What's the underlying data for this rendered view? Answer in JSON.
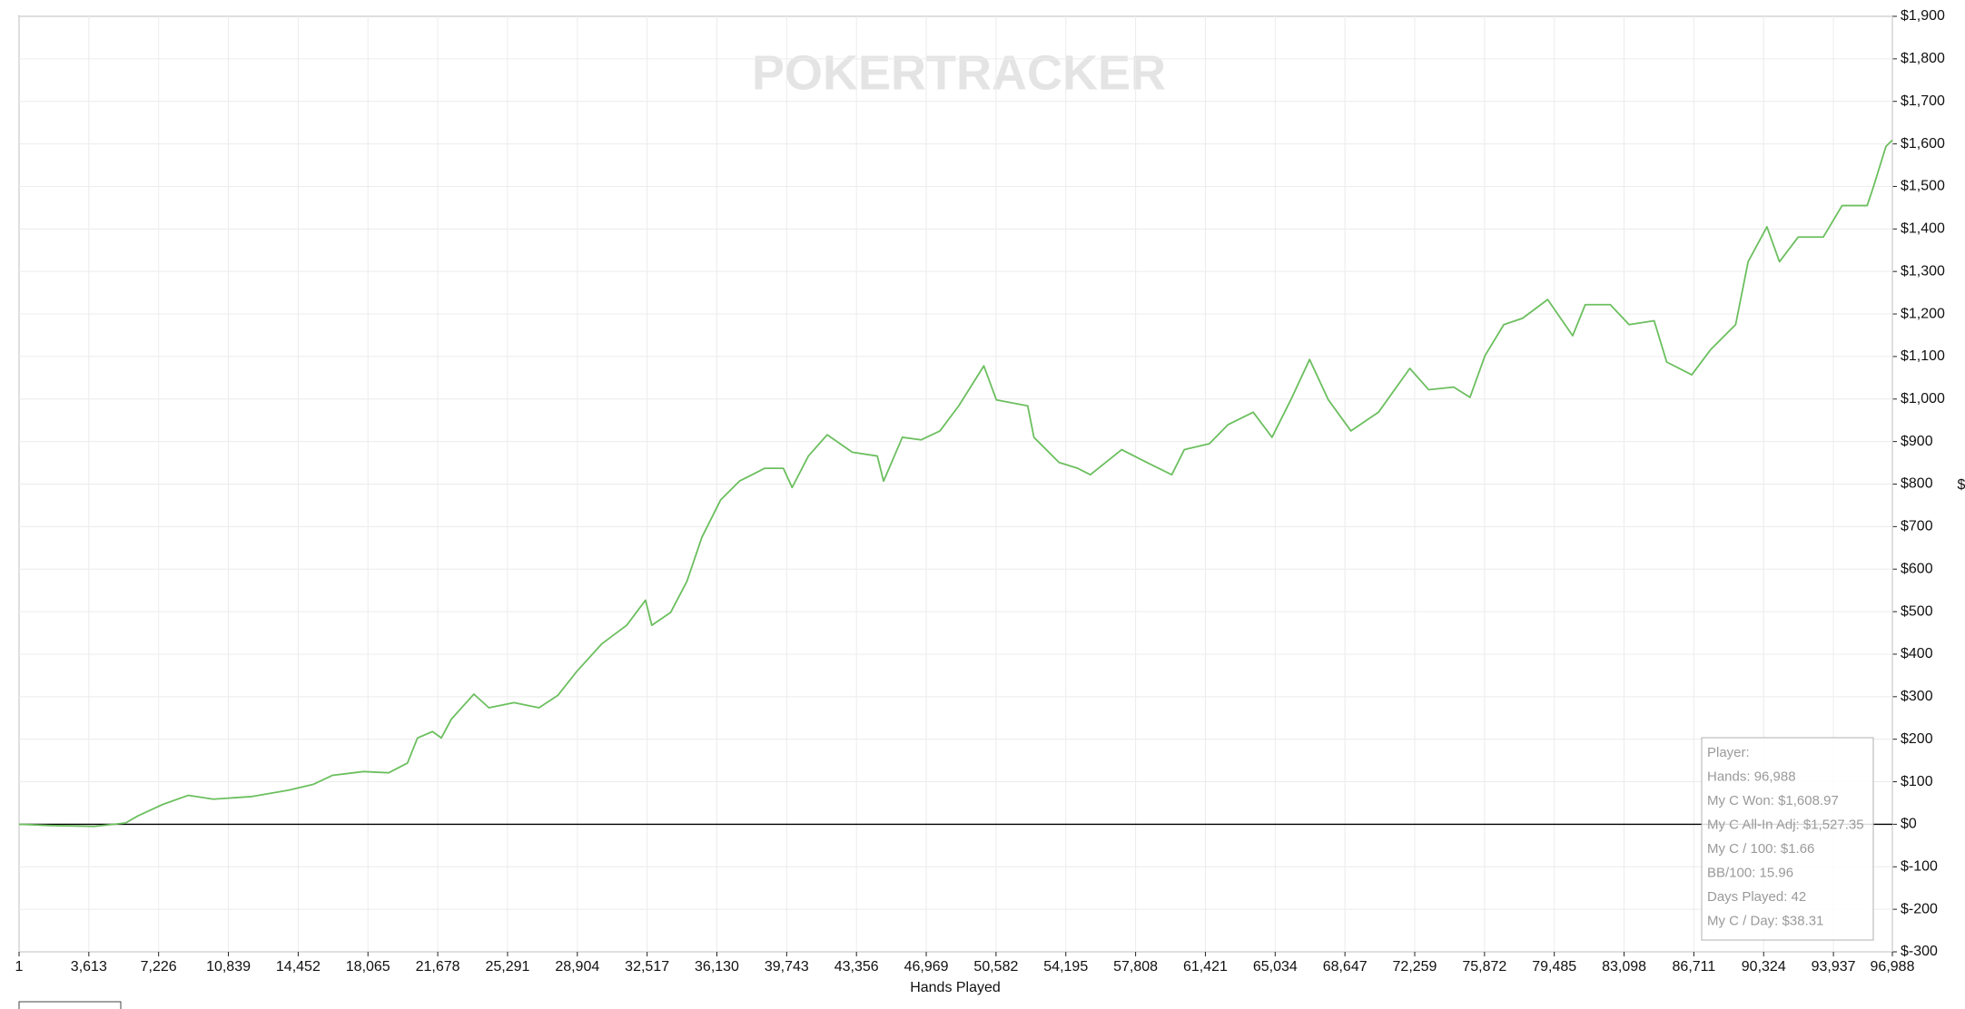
{
  "chart_data": {
    "type": "line",
    "watermark": "POKERTRACKER",
    "x_label": "Hands Played",
    "y_label": "$",
    "color": "#6cbf5f",
    "grid": true,
    "zero_line": true,
    "xlim": [
      1,
      96988
    ],
    "ylim": [
      -300,
      1900
    ],
    "xticks": [
      1,
      {
        "value": 3613,
        "label": "3,613"
      },
      {
        "value": 7226,
        "label": "7,226"
      },
      {
        "value": 10839,
        "label": "10,839"
      },
      {
        "value": 14452,
        "label": "14,452"
      },
      {
        "value": 18065,
        "label": "18,065"
      },
      {
        "value": 21678,
        "label": "21,678"
      },
      {
        "value": 25291,
        "label": "25,291"
      },
      {
        "value": 28904,
        "label": "28,904"
      },
      {
        "value": 32517,
        "label": "32,517"
      },
      {
        "value": 36130,
        "label": "36,130"
      },
      {
        "value": 39743,
        "label": "39,743"
      },
      {
        "value": 43356,
        "label": "43,356"
      },
      {
        "value": 46969,
        "label": "46,969"
      },
      {
        "value": 50582,
        "label": "50,582"
      },
      {
        "value": 54195,
        "label": "54,195"
      },
      {
        "value": 57808,
        "label": "57,808"
      },
      {
        "value": 61421,
        "label": "61,421"
      },
      {
        "value": 65034,
        "label": "65,034"
      },
      {
        "value": 68647,
        "label": "68,647"
      },
      {
        "value": 72259,
        "label": "72,259"
      },
      {
        "value": 75872,
        "label": "75,872"
      },
      {
        "value": 79485,
        "label": "79,485"
      },
      {
        "value": 83098,
        "label": "83,098"
      },
      {
        "value": 86711,
        "label": "86,711"
      },
      {
        "value": 90324,
        "label": "90,324"
      },
      {
        "value": 93937,
        "label": "93,937"
      },
      {
        "value": 96988,
        "label": "96,988"
      }
    ],
    "yticks": [
      {
        "value": -300,
        "label": "$-300"
      },
      {
        "value": -200,
        "label": "$-200"
      },
      {
        "value": -100,
        "label": "$-100"
      },
      {
        "value": 0,
        "label": "$0"
      },
      {
        "value": 100,
        "label": "$100"
      },
      {
        "value": 200,
        "label": "$200"
      },
      {
        "value": 300,
        "label": "$300"
      },
      {
        "value": 400,
        "label": "$400"
      },
      {
        "value": 500,
        "label": "$500"
      },
      {
        "value": 600,
        "label": "$600"
      },
      {
        "value": 700,
        "label": "$700"
      },
      {
        "value": 800,
        "label": "$800"
      },
      {
        "value": 900,
        "label": "$900"
      },
      {
        "value": 1000,
        "label": "$1,000"
      },
      {
        "value": 1100,
        "label": "$1,100"
      },
      {
        "value": 1200,
        "label": "$1,200"
      },
      {
        "value": 1300,
        "label": "$1,300"
      },
      {
        "value": 1400,
        "label": "$1,400"
      },
      {
        "value": 1500,
        "label": "$1,500"
      },
      {
        "value": 1600,
        "label": "$1,600"
      },
      {
        "value": 1700,
        "label": "$1,700"
      },
      {
        "value": 1800,
        "label": "$1,800"
      },
      {
        "value": 1900,
        "label": "$1,900"
      }
    ],
    "x": [
      1,
      1622,
      3892,
      5514,
      6163,
      7460,
      8757,
      10055,
      12001,
      13947,
      15244,
      16218,
      17839,
      19137,
      20110,
      20629,
      21407,
      21861,
      22380,
      23548,
      24326,
      25624,
      26921,
      27894,
      28867,
      30164,
      31462,
      32435,
      32759,
      33732,
      34576,
      35354,
      36327,
      37300,
      38598,
      39571,
      40025,
      40868,
      41841,
      43139,
      44436,
      44760,
      45733,
      46706,
      47679,
      48653,
      49950,
      50599,
      52221,
      52545,
      53842,
      54815,
      55464,
      57086,
      58383,
      59680,
      60329,
      61627,
      62600,
      63897,
      64870,
      65843,
      66816,
      67789,
      68957,
      70384,
      72006,
      72979,
      74276,
      75120,
      75898,
      76871,
      77844,
      79142,
      80439,
      81088,
      82385,
      83358,
      84656,
      85305,
      86602,
      87575,
      88873,
      89521,
      90494,
      91143,
      92116,
      93413,
      94386,
      95684,
      96008,
      96656,
      96988
    ],
    "values": [
      0,
      -3,
      -5,
      3,
      20,
      47,
      68,
      59,
      65,
      80,
      94,
      115,
      124,
      121,
      144,
      203,
      218,
      203,
      247,
      306,
      274,
      286,
      274,
      303,
      359,
      424,
      468,
      527,
      468,
      498,
      571,
      675,
      763,
      807,
      837,
      837,
      792,
      866,
      916,
      875,
      866,
      807,
      910,
      904,
      925,
      984,
      1078,
      998,
      984,
      910,
      851,
      837,
      822,
      881,
      851,
      822,
      881,
      895,
      940,
      969,
      910,
      998,
      1093,
      998,
      925,
      969,
      1072,
      1022,
      1028,
      1004,
      1102,
      1175,
      1190,
      1234,
      1149,
      1222,
      1222,
      1175,
      1184,
      1087,
      1057,
      1116,
      1175,
      1323,
      1405,
      1323,
      1381,
      1381,
      1455,
      1455,
      1499,
      1594,
      1609
    ],
    "info_box": [
      "Player:",
      "Hands: 96,988",
      "My C Won: $1,608.97",
      "My C All-In Adj: $1,527.35",
      "My C / 100: $1.66",
      "BB/100: 15.96",
      "Days Played: 42",
      "My C / Day: $38.31"
    ]
  }
}
